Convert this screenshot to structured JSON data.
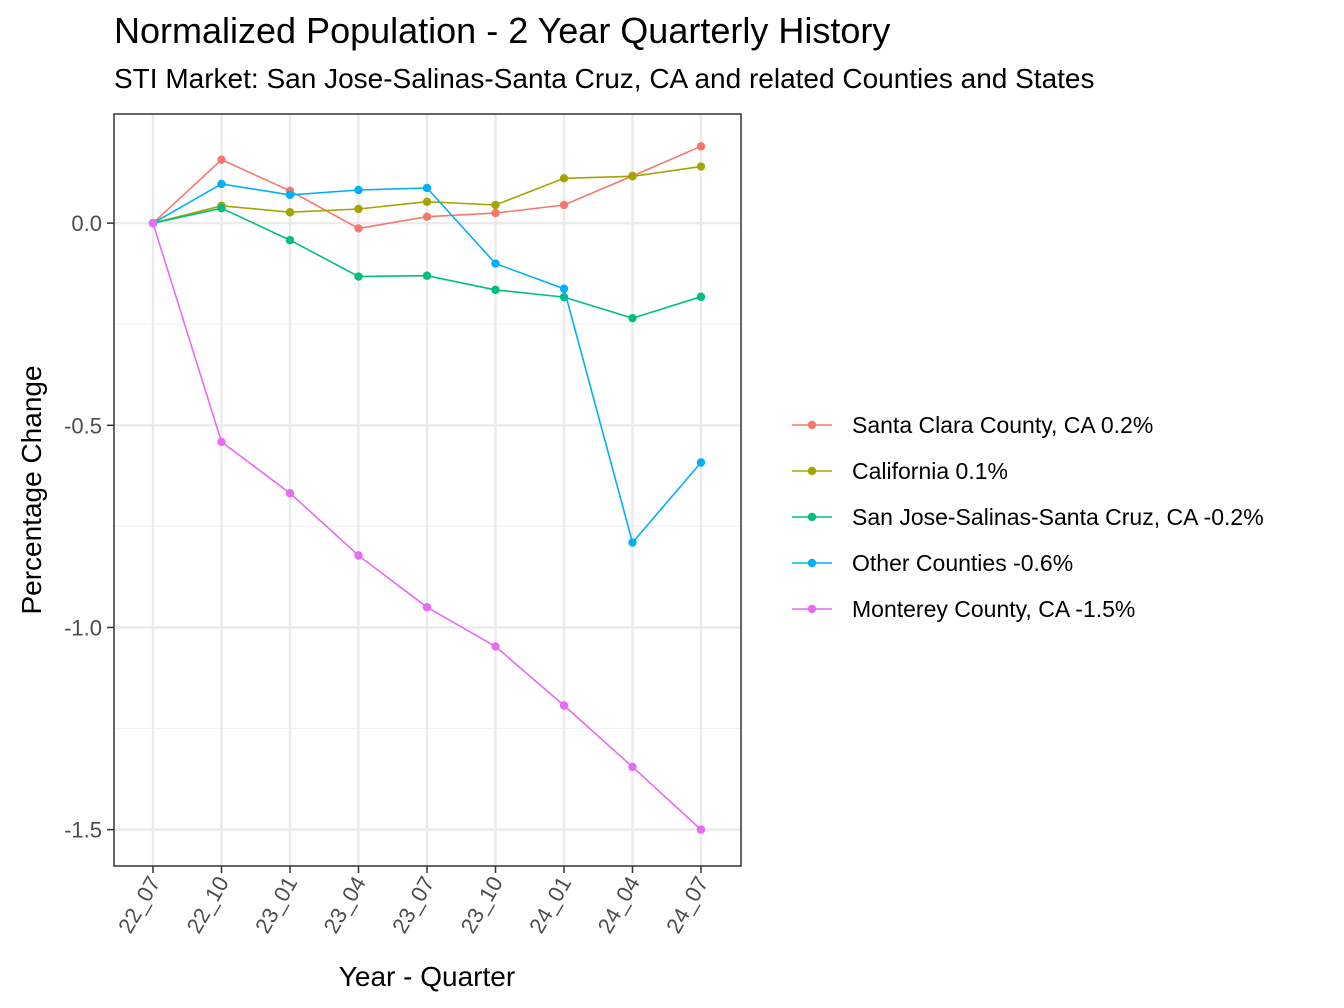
{
  "chart_data": {
    "type": "line",
    "title": "Normalized Population - 2 Year Quarterly History",
    "subtitle": "STI Market: San Jose-Salinas-Santa Cruz, CA and related Counties and States",
    "xlabel": "Year - Quarter",
    "ylabel": "Percentage Change",
    "categories": [
      "22_07",
      "22_10",
      "23_01",
      "23_04",
      "23_07",
      "23_10",
      "24_01",
      "24_04",
      "24_07"
    ],
    "ylim": [
      -1.59,
      0.27
    ],
    "yticks": [
      0.0,
      -0.5,
      -1.0,
      -1.5
    ],
    "ytick_labels": [
      "0.0",
      "-0.5",
      "-1.0",
      "-1.5"
    ],
    "grid": true,
    "legend_position": "right",
    "series": [
      {
        "name": "Santa Clara County, CA 0.2%",
        "color": "#F8766D",
        "values": [
          0.0,
          0.157,
          0.08,
          -0.013,
          0.016,
          0.025,
          0.045,
          0.117,
          0.19
        ]
      },
      {
        "name": "California 0.1%",
        "color": "#A3A500",
        "values": [
          0.0,
          0.043,
          0.027,
          0.035,
          0.053,
          0.045,
          0.111,
          0.116,
          0.14
        ]
      },
      {
        "name": "San Jose-Salinas-Santa Cruz, CA -0.2%",
        "color": "#00BF7D",
        "values": [
          0.0,
          0.037,
          -0.042,
          -0.132,
          -0.13,
          -0.165,
          -0.183,
          -0.235,
          -0.182
        ]
      },
      {
        "name": "Other Counties -0.6%",
        "color": "#00B0F6",
        "values": [
          0.0,
          0.097,
          0.07,
          0.082,
          0.087,
          -0.1,
          -0.162,
          -0.79,
          -0.592
        ]
      },
      {
        "name": "Monterey County, CA -1.5%",
        "color": "#E76BF3",
        "values": [
          0.0,
          -0.541,
          -0.668,
          -0.822,
          -0.95,
          -1.047,
          -1.193,
          -1.345,
          -1.5
        ]
      }
    ]
  }
}
